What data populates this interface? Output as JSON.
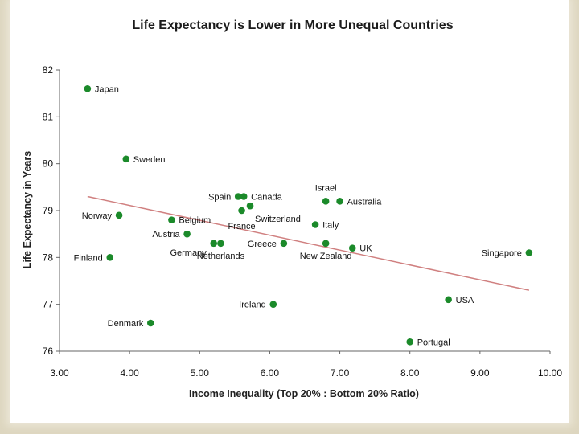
{
  "chart_data": {
    "type": "scatter",
    "title": "Life Expectancy is Lower in More Unequal Countries",
    "xlabel": "Income Inequality (Top 20% : Bottom 20%  Ratio)",
    "ylabel": "Life Expectancy  in Years",
    "xlim": [
      3.0,
      10.0
    ],
    "ylim": [
      76,
      82
    ],
    "xticks": [
      3,
      4,
      5,
      6,
      7,
      8,
      9,
      10
    ],
    "yticks": [
      76,
      77,
      78,
      79,
      80,
      81,
      82
    ],
    "xtick_labels": [
      "3.00",
      "4.00",
      "5.00",
      "6.00",
      "7.00",
      "8.00",
      "9.00",
      "10.00"
    ],
    "ytick_labels": [
      "76",
      "77",
      "78",
      "79",
      "80",
      "81",
      "82"
    ],
    "grid": false,
    "point_color": "#1b8a2a",
    "trendline": {
      "color": "#d08080",
      "x": [
        3.4,
        9.7
      ],
      "y": [
        79.3,
        77.3
      ]
    },
    "points": [
      {
        "label": "Japan",
        "x": 3.4,
        "y": 81.6,
        "pos": "right"
      },
      {
        "label": "Sweden",
        "x": 3.95,
        "y": 80.1,
        "pos": "right"
      },
      {
        "label": "Norway",
        "x": 3.85,
        "y": 78.9,
        "pos": "left"
      },
      {
        "label": "Finland",
        "x": 3.72,
        "y": 78.0,
        "pos": "left"
      },
      {
        "label": "Denmark",
        "x": 4.3,
        "y": 76.6,
        "pos": "left"
      },
      {
        "label": "Belgium",
        "x": 4.6,
        "y": 78.8,
        "pos": "right"
      },
      {
        "label": "Austria",
        "x": 4.82,
        "y": 78.5,
        "pos": "left"
      },
      {
        "label": "Germany",
        "x": 5.2,
        "y": 78.3,
        "pos": "below-left"
      },
      {
        "label": "Netherlands",
        "x": 5.3,
        "y": 78.3,
        "pos": "below"
      },
      {
        "label": "Spain",
        "x": 5.55,
        "y": 79.3,
        "pos": "left"
      },
      {
        "label": "Canada",
        "x": 5.63,
        "y": 79.3,
        "pos": "right"
      },
      {
        "label": "France",
        "x": 5.6,
        "y": 79.0,
        "pos": "below-c"
      },
      {
        "label": "Switzerland",
        "x": 5.72,
        "y": 79.1,
        "pos": "below-right"
      },
      {
        "label": "Greece",
        "x": 6.2,
        "y": 78.3,
        "pos": "left"
      },
      {
        "label": "Ireland",
        "x": 6.05,
        "y": 77.0,
        "pos": "left"
      },
      {
        "label": "Israel",
        "x": 6.8,
        "y": 79.2,
        "pos": "above"
      },
      {
        "label": "Australia",
        "x": 7.0,
        "y": 79.2,
        "pos": "right"
      },
      {
        "label": "Italy",
        "x": 6.65,
        "y": 78.7,
        "pos": "right"
      },
      {
        "label": "New Zealand",
        "x": 6.8,
        "y": 78.3,
        "pos": "below"
      },
      {
        "label": "UK",
        "x": 7.18,
        "y": 78.2,
        "pos": "right"
      },
      {
        "label": "USA",
        "x": 8.55,
        "y": 77.1,
        "pos": "right"
      },
      {
        "label": "Portugal",
        "x": 8.0,
        "y": 76.2,
        "pos": "right"
      },
      {
        "label": "Singapore",
        "x": 9.7,
        "y": 78.1,
        "pos": "left"
      }
    ]
  }
}
